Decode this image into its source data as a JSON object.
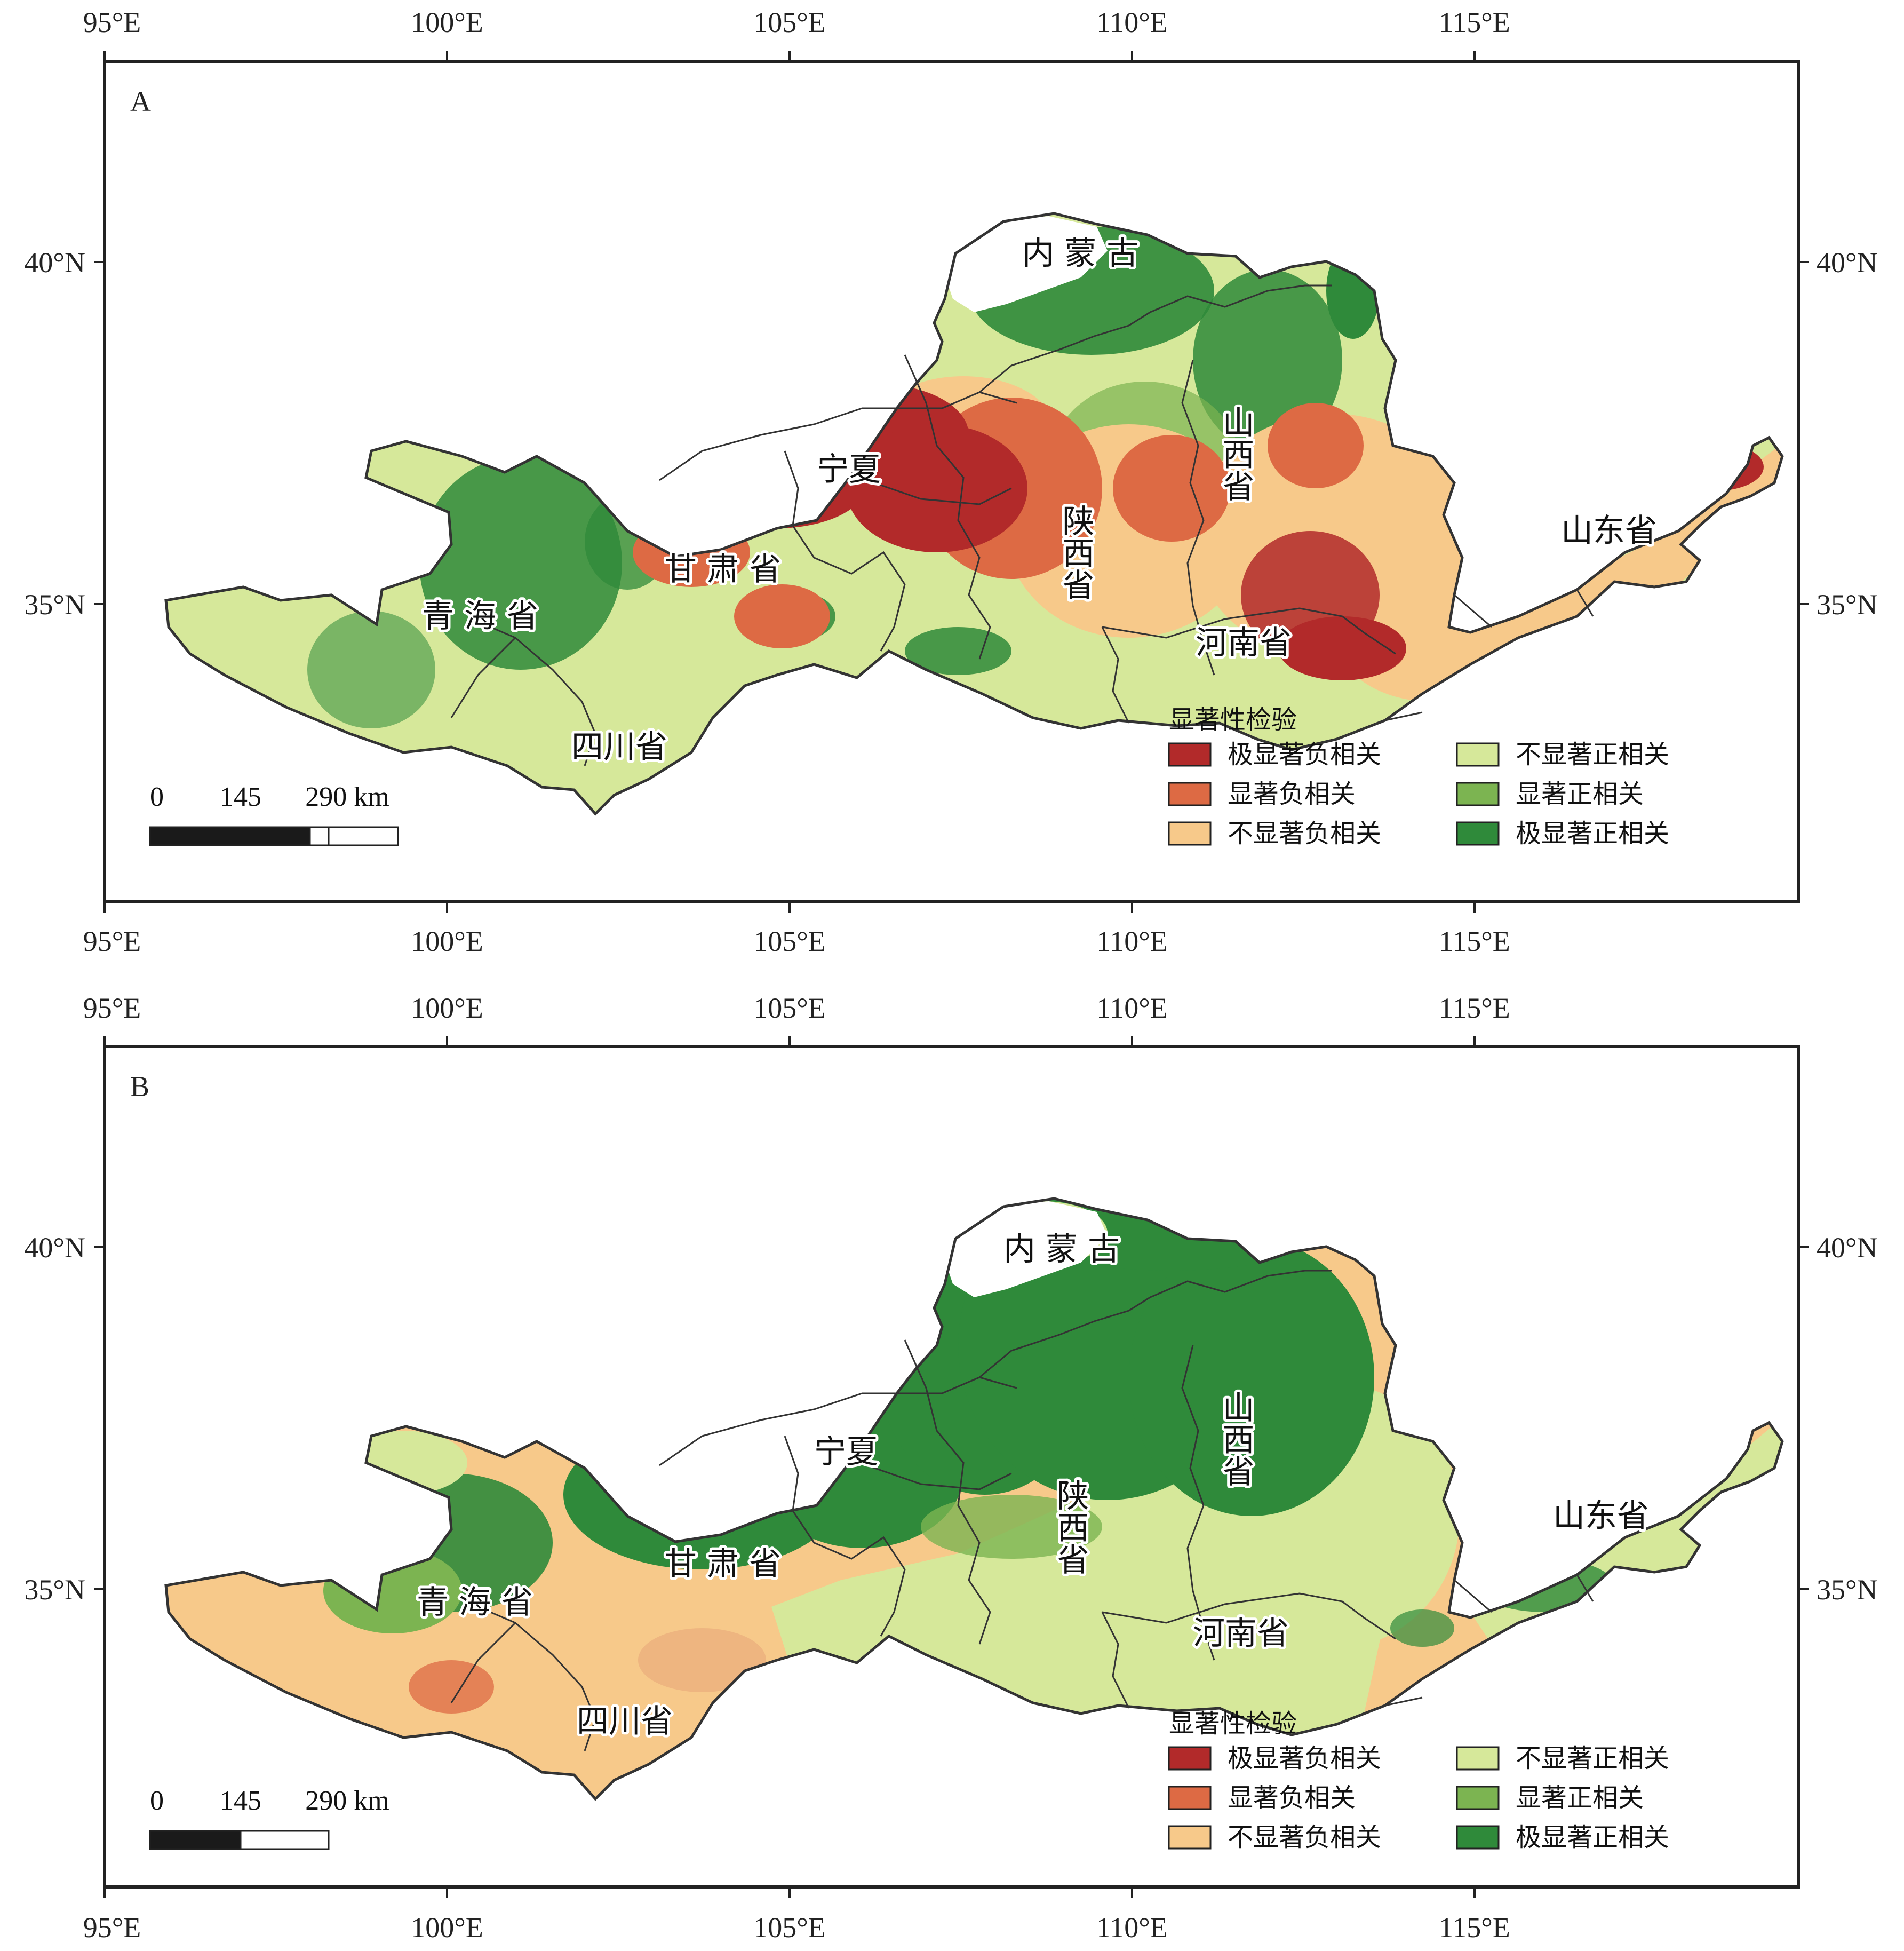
{
  "axes": {
    "lon_labels": [
      "95°E",
      "100°E",
      "105°E",
      "110°E",
      "115°E"
    ],
    "lat_labels": [
      "40°N",
      "35°N"
    ]
  },
  "legend": {
    "title": "显著性检验",
    "items": [
      {
        "label": "极显著负相关",
        "color": "#b22a2a"
      },
      {
        "label": "显著负相关",
        "color": "#dd6a44"
      },
      {
        "label": "不显著负相关",
        "color": "#f7c98a"
      },
      {
        "label": "不显著正相关",
        "color": "#d6e89a"
      },
      {
        "label": "显著正相关",
        "color": "#7cb451"
      },
      {
        "label": "极显著正相关",
        "color": "#2f8a3a"
      }
    ]
  },
  "scale_bar": {
    "labels": [
      "0",
      "145",
      "290 km"
    ]
  },
  "provinces": [
    "内 蒙 古",
    "宁夏",
    "甘 肃 省",
    "青 海 省",
    "四川省",
    "陕西省",
    "山西省",
    "河南省",
    "山东省"
  ],
  "panels": [
    {
      "letter": "A"
    },
    {
      "letter": "B"
    }
  ]
}
